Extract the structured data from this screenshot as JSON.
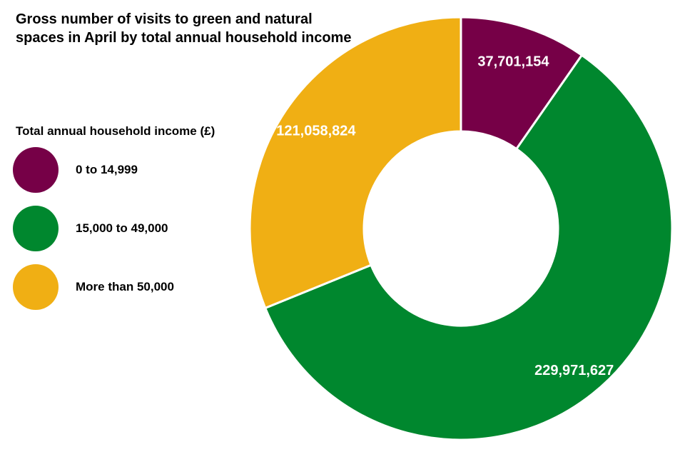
{
  "chart_data": {
    "type": "pie",
    "variant": "donut",
    "title": "Gross number of visits to green and natural spaces in April by total annual household income",
    "legend_title": "Total annual household income (£)",
    "legend_position": "left",
    "categories": [
      "0 to 14,999",
      "15,000 to 49,000",
      "More than 50,000"
    ],
    "values": [
      37701154,
      229971627,
      121058824
    ],
    "data_labels": [
      "37,701,154",
      "229,971,627",
      "121,058,824"
    ],
    "colors": [
      "#760047",
      "#00872E",
      "#F0AF14"
    ]
  }
}
